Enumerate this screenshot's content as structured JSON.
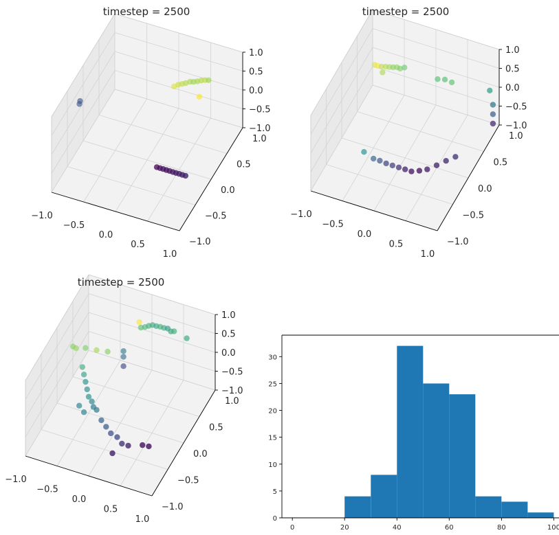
{
  "colors": {
    "pane": "#f2f2f2",
    "pane_side": "#e9e9e9",
    "grid": "#d3d3d3",
    "bar": "#1f77b4",
    "axis": "#000000"
  },
  "chart_data": [
    {
      "type": "scatter",
      "projection": "3d",
      "title": "timestep = 2500",
      "colormap": "viridis",
      "xlim": [
        -1,
        1
      ],
      "ylim": [
        -1,
        1
      ],
      "zlim": [
        -1,
        1
      ],
      "x_ticks": [
        "−1.0",
        "−0.5",
        "0.0",
        "0.5",
        "1.0"
      ],
      "y_ticks": [
        "−1.0",
        "−0.5",
        "0.0",
        "0.5",
        "1.0"
      ],
      "z_ticks": [
        "−1.0",
        "−0.5",
        "0.0",
        "0.5",
        "1.0"
      ],
      "grid": true,
      "points": [
        {
          "x": 0.05,
          "y": 0.75,
          "z": -0.05,
          "c": 0.95
        },
        {
          "x": 0.1,
          "y": 0.78,
          "z": -0.02,
          "c": 0.92
        },
        {
          "x": 0.15,
          "y": 0.8,
          "z": 0.0,
          "c": 0.9
        },
        {
          "x": 0.2,
          "y": 0.82,
          "z": 0.02,
          "c": 0.88
        },
        {
          "x": 0.25,
          "y": 0.85,
          "z": 0.04,
          "c": 0.87
        },
        {
          "x": 0.3,
          "y": 0.86,
          "z": 0.05,
          "c": 0.85
        },
        {
          "x": 0.35,
          "y": 0.88,
          "z": 0.06,
          "c": 0.86
        },
        {
          "x": 0.4,
          "y": 0.9,
          "z": 0.08,
          "c": 0.88
        },
        {
          "x": 0.45,
          "y": 0.92,
          "z": 0.09,
          "c": 0.9
        },
        {
          "x": 0.5,
          "y": 0.93,
          "z": 0.1,
          "c": 0.85
        },
        {
          "x": 0.42,
          "y": 0.8,
          "z": -0.2,
          "c": 0.99
        },
        {
          "x": -0.95,
          "y": -0.2,
          "z": 0.35,
          "c": 0.25
        },
        {
          "x": -0.95,
          "y": -0.22,
          "z": 0.3,
          "c": 0.25
        },
        {
          "x": 0.2,
          "y": -0.1,
          "z": -0.95,
          "c": 0.0
        },
        {
          "x": 0.25,
          "y": -0.1,
          "z": -0.95,
          "c": 0.02
        },
        {
          "x": 0.3,
          "y": -0.1,
          "z": -0.95,
          "c": 0.04
        },
        {
          "x": 0.35,
          "y": -0.1,
          "z": -0.95,
          "c": 0.03
        },
        {
          "x": 0.4,
          "y": -0.1,
          "z": -0.95,
          "c": 0.05
        },
        {
          "x": 0.45,
          "y": -0.1,
          "z": -0.95,
          "c": 0.07
        },
        {
          "x": 0.5,
          "y": -0.1,
          "z": -0.95,
          "c": 0.06
        },
        {
          "x": 0.55,
          "y": -0.1,
          "z": -0.95,
          "c": 0.08
        },
        {
          "x": 0.6,
          "y": -0.1,
          "z": -0.95,
          "c": 0.1
        },
        {
          "x": 0.65,
          "y": -0.1,
          "z": -0.95,
          "c": 0.09
        }
      ]
    },
    {
      "type": "scatter",
      "projection": "3d",
      "title": "timestep = 2500",
      "colormap": "viridis",
      "xlim": [
        -1,
        1
      ],
      "ylim": [
        -1,
        1
      ],
      "zlim": [
        -1,
        1
      ],
      "x_ticks": [
        "−1.0",
        "−0.5",
        "0.0",
        "0.5",
        "1.0"
      ],
      "y_ticks": [
        "−1.0",
        "−0.5",
        "0.0",
        "0.5",
        "1.0"
      ],
      "z_ticks": [
        "−1.0",
        "−0.5",
        "0.0",
        "0.5",
        "1.0"
      ],
      "grid": true,
      "points": [
        {
          "x": -0.75,
          "y": 0.55,
          "z": 0.3,
          "c": 0.95
        },
        {
          "x": -0.7,
          "y": 0.55,
          "z": 0.3,
          "c": 0.99
        },
        {
          "x": -0.65,
          "y": 0.57,
          "z": 0.28,
          "c": 0.9
        },
        {
          "x": -0.6,
          "y": 0.6,
          "z": 0.26,
          "c": 0.88
        },
        {
          "x": -0.55,
          "y": 0.62,
          "z": 0.25,
          "c": 0.85
        },
        {
          "x": -0.5,
          "y": 0.64,
          "z": 0.24,
          "c": 0.8
        },
        {
          "x": -0.45,
          "y": 0.66,
          "z": 0.24,
          "c": 0.82
        },
        {
          "x": -0.4,
          "y": 0.66,
          "z": 0.23,
          "c": 0.78
        },
        {
          "x": -0.35,
          "y": 0.7,
          "z": 0.23,
          "c": 0.75
        },
        {
          "x": -0.6,
          "y": 0.5,
          "z": 0.25,
          "c": 0.86
        },
        {
          "x": 0.1,
          "y": 0.85,
          "z": -0.05,
          "c": 0.7
        },
        {
          "x": 0.2,
          "y": 0.88,
          "z": -0.05,
          "c": 0.68
        },
        {
          "x": 0.3,
          "y": 0.9,
          "z": -0.1,
          "c": 0.72
        },
        {
          "x": 0.9,
          "y": 0.9,
          "z": 0.0,
          "c": 0.55
        },
        {
          "x": 0.95,
          "y": 0.9,
          "z": -0.35,
          "c": 0.4
        },
        {
          "x": 0.95,
          "y": 0.9,
          "z": -0.6,
          "c": 0.3
        },
        {
          "x": 0.95,
          "y": 0.9,
          "z": -0.85,
          "c": 0.1
        },
        {
          "x": -0.55,
          "y": -0.2,
          "z": -0.85,
          "c": 0.5
        },
        {
          "x": -0.4,
          "y": -0.2,
          "z": -0.95,
          "c": 0.3
        },
        {
          "x": -0.3,
          "y": -0.2,
          "z": -0.95,
          "c": 0.25
        },
        {
          "x": -0.2,
          "y": -0.2,
          "z": -0.97,
          "c": 0.2
        },
        {
          "x": -0.1,
          "y": -0.2,
          "z": -0.97,
          "c": 0.18
        },
        {
          "x": 0.0,
          "y": -0.2,
          "z": -0.97,
          "c": 0.15
        },
        {
          "x": 0.1,
          "y": -0.2,
          "z": -0.97,
          "c": 0.1
        },
        {
          "x": 0.2,
          "y": -0.2,
          "z": -0.97,
          "c": 0.05
        },
        {
          "x": 0.3,
          "y": -0.15,
          "z": -0.97,
          "c": 0.05
        },
        {
          "x": 0.4,
          "y": -0.1,
          "z": -0.95,
          "c": 0.08
        },
        {
          "x": 0.5,
          "y": 0.0,
          "z": -0.93,
          "c": 0.1
        },
        {
          "x": 0.6,
          "y": 0.1,
          "z": -0.9,
          "c": 0.12
        },
        {
          "x": 0.7,
          "y": 0.2,
          "z": -0.88,
          "c": 0.15
        }
      ]
    },
    {
      "type": "scatter",
      "projection": "3d",
      "title": "timestep = 2500",
      "colormap": "viridis",
      "xlim": [
        -1,
        1
      ],
      "ylim": [
        -1,
        1
      ],
      "zlim": [
        -1,
        1
      ],
      "x_ticks": [
        "−1.0",
        "−0.5",
        "0.0",
        "0.5",
        "1.0"
      ],
      "y_ticks": [
        "−1.0",
        "−0.5",
        "0.0",
        "0.5",
        "1.0"
      ],
      "z_ticks": [
        "−1.0",
        "−0.5",
        "0.0",
        "0.5",
        "1.0"
      ],
      "grid": true,
      "points": [
        {
          "x": -0.1,
          "y": 0.8,
          "z": 0.5,
          "c": 0.99
        },
        {
          "x": -0.05,
          "y": 0.75,
          "z": 0.45,
          "c": 0.7
        },
        {
          "x": 0.0,
          "y": 0.78,
          "z": 0.45,
          "c": 0.65
        },
        {
          "x": 0.05,
          "y": 0.8,
          "z": 0.48,
          "c": 0.62
        },
        {
          "x": 0.1,
          "y": 0.82,
          "z": 0.5,
          "c": 0.6
        },
        {
          "x": 0.15,
          "y": 0.84,
          "z": 0.47,
          "c": 0.58
        },
        {
          "x": 0.2,
          "y": 0.86,
          "z": 0.45,
          "c": 0.62
        },
        {
          "x": 0.25,
          "y": 0.88,
          "z": 0.42,
          "c": 0.6
        },
        {
          "x": 0.3,
          "y": 0.9,
          "z": 0.4,
          "c": 0.55
        },
        {
          "x": 0.35,
          "y": 0.9,
          "z": 0.35,
          "c": 0.58
        },
        {
          "x": 0.4,
          "y": 0.9,
          "z": 0.38,
          "c": 0.62
        },
        {
          "x": 0.6,
          "y": 0.9,
          "z": 0.3,
          "c": 0.6
        },
        {
          "x": -0.2,
          "y": 0.5,
          "z": 0.1,
          "c": 0.4
        },
        {
          "x": -0.2,
          "y": 0.5,
          "z": -0.05,
          "c": 0.35
        },
        {
          "x": -0.2,
          "y": 0.5,
          "z": -0.3,
          "c": 0.2
        },
        {
          "x": -0.85,
          "y": 0.2,
          "z": 0.3,
          "c": 0.8
        },
        {
          "x": -0.8,
          "y": 0.2,
          "z": 0.28,
          "c": 0.82
        },
        {
          "x": -0.7,
          "y": 0.3,
          "z": 0.2,
          "c": 0.78
        },
        {
          "x": -0.55,
          "y": 0.35,
          "z": 0.15,
          "c": 0.85
        },
        {
          "x": -0.4,
          "y": 0.4,
          "z": 0.12,
          "c": 0.8
        },
        {
          "x": -0.65,
          "y": 0.1,
          "z": 0.0,
          "c": 0.6
        },
        {
          "x": -0.6,
          "y": 0.05,
          "z": -0.1,
          "c": 0.55
        },
        {
          "x": -0.55,
          "y": 0.0,
          "z": -0.2,
          "c": 0.5
        },
        {
          "x": -0.5,
          "y": -0.05,
          "z": -0.3,
          "c": 0.48
        },
        {
          "x": -0.45,
          "y": -0.1,
          "z": -0.4,
          "c": 0.5
        },
        {
          "x": -0.4,
          "y": -0.1,
          "z": -0.5,
          "c": 0.45
        },
        {
          "x": -0.35,
          "y": -0.15,
          "z": -0.55,
          "c": 0.42
        },
        {
          "x": -0.3,
          "y": -0.15,
          "z": -0.6,
          "c": 0.4
        },
        {
          "x": -0.55,
          "y": -0.2,
          "z": -0.55,
          "c": 0.45
        },
        {
          "x": -0.45,
          "y": -0.25,
          "z": -0.6,
          "c": 0.44
        },
        {
          "x": -0.2,
          "y": -0.2,
          "z": -0.75,
          "c": 0.3
        },
        {
          "x": -0.1,
          "y": -0.25,
          "z": -0.8,
          "c": 0.28
        },
        {
          "x": 0.0,
          "y": -0.3,
          "z": -0.85,
          "c": 0.25
        },
        {
          "x": 0.1,
          "y": -0.3,
          "z": -0.9,
          "c": 0.22
        },
        {
          "x": 0.2,
          "y": -0.35,
          "z": -0.95,
          "c": 0.15
        },
        {
          "x": 0.3,
          "y": -0.35,
          "z": -0.95,
          "c": 0.1
        },
        {
          "x": 0.15,
          "y": -0.55,
          "z": -0.95,
          "c": 0.08
        },
        {
          "x": 0.5,
          "y": -0.3,
          "z": -0.9,
          "c": 0.05
        },
        {
          "x": 0.6,
          "y": -0.3,
          "z": -0.88,
          "c": 0.05
        }
      ]
    },
    {
      "type": "bar",
      "histogram": true,
      "xlim": [
        -4,
        102
      ],
      "ylim": [
        0,
        34
      ],
      "x_ticks": [
        "0",
        "20",
        "40",
        "60",
        "80",
        "100"
      ],
      "y_ticks": [
        "0",
        "5",
        "10",
        "15",
        "20",
        "25",
        "30"
      ],
      "bins": [
        {
          "start": 20,
          "end": 30,
          "count": 4
        },
        {
          "start": 30,
          "end": 40,
          "count": 8
        },
        {
          "start": 40,
          "end": 50,
          "count": 32
        },
        {
          "start": 50,
          "end": 60,
          "count": 25
        },
        {
          "start": 60,
          "end": 70,
          "count": 23
        },
        {
          "start": 70,
          "end": 80,
          "count": 4
        },
        {
          "start": 80,
          "end": 90,
          "count": 3
        },
        {
          "start": 90,
          "end": 100,
          "count": 1
        }
      ]
    }
  ]
}
